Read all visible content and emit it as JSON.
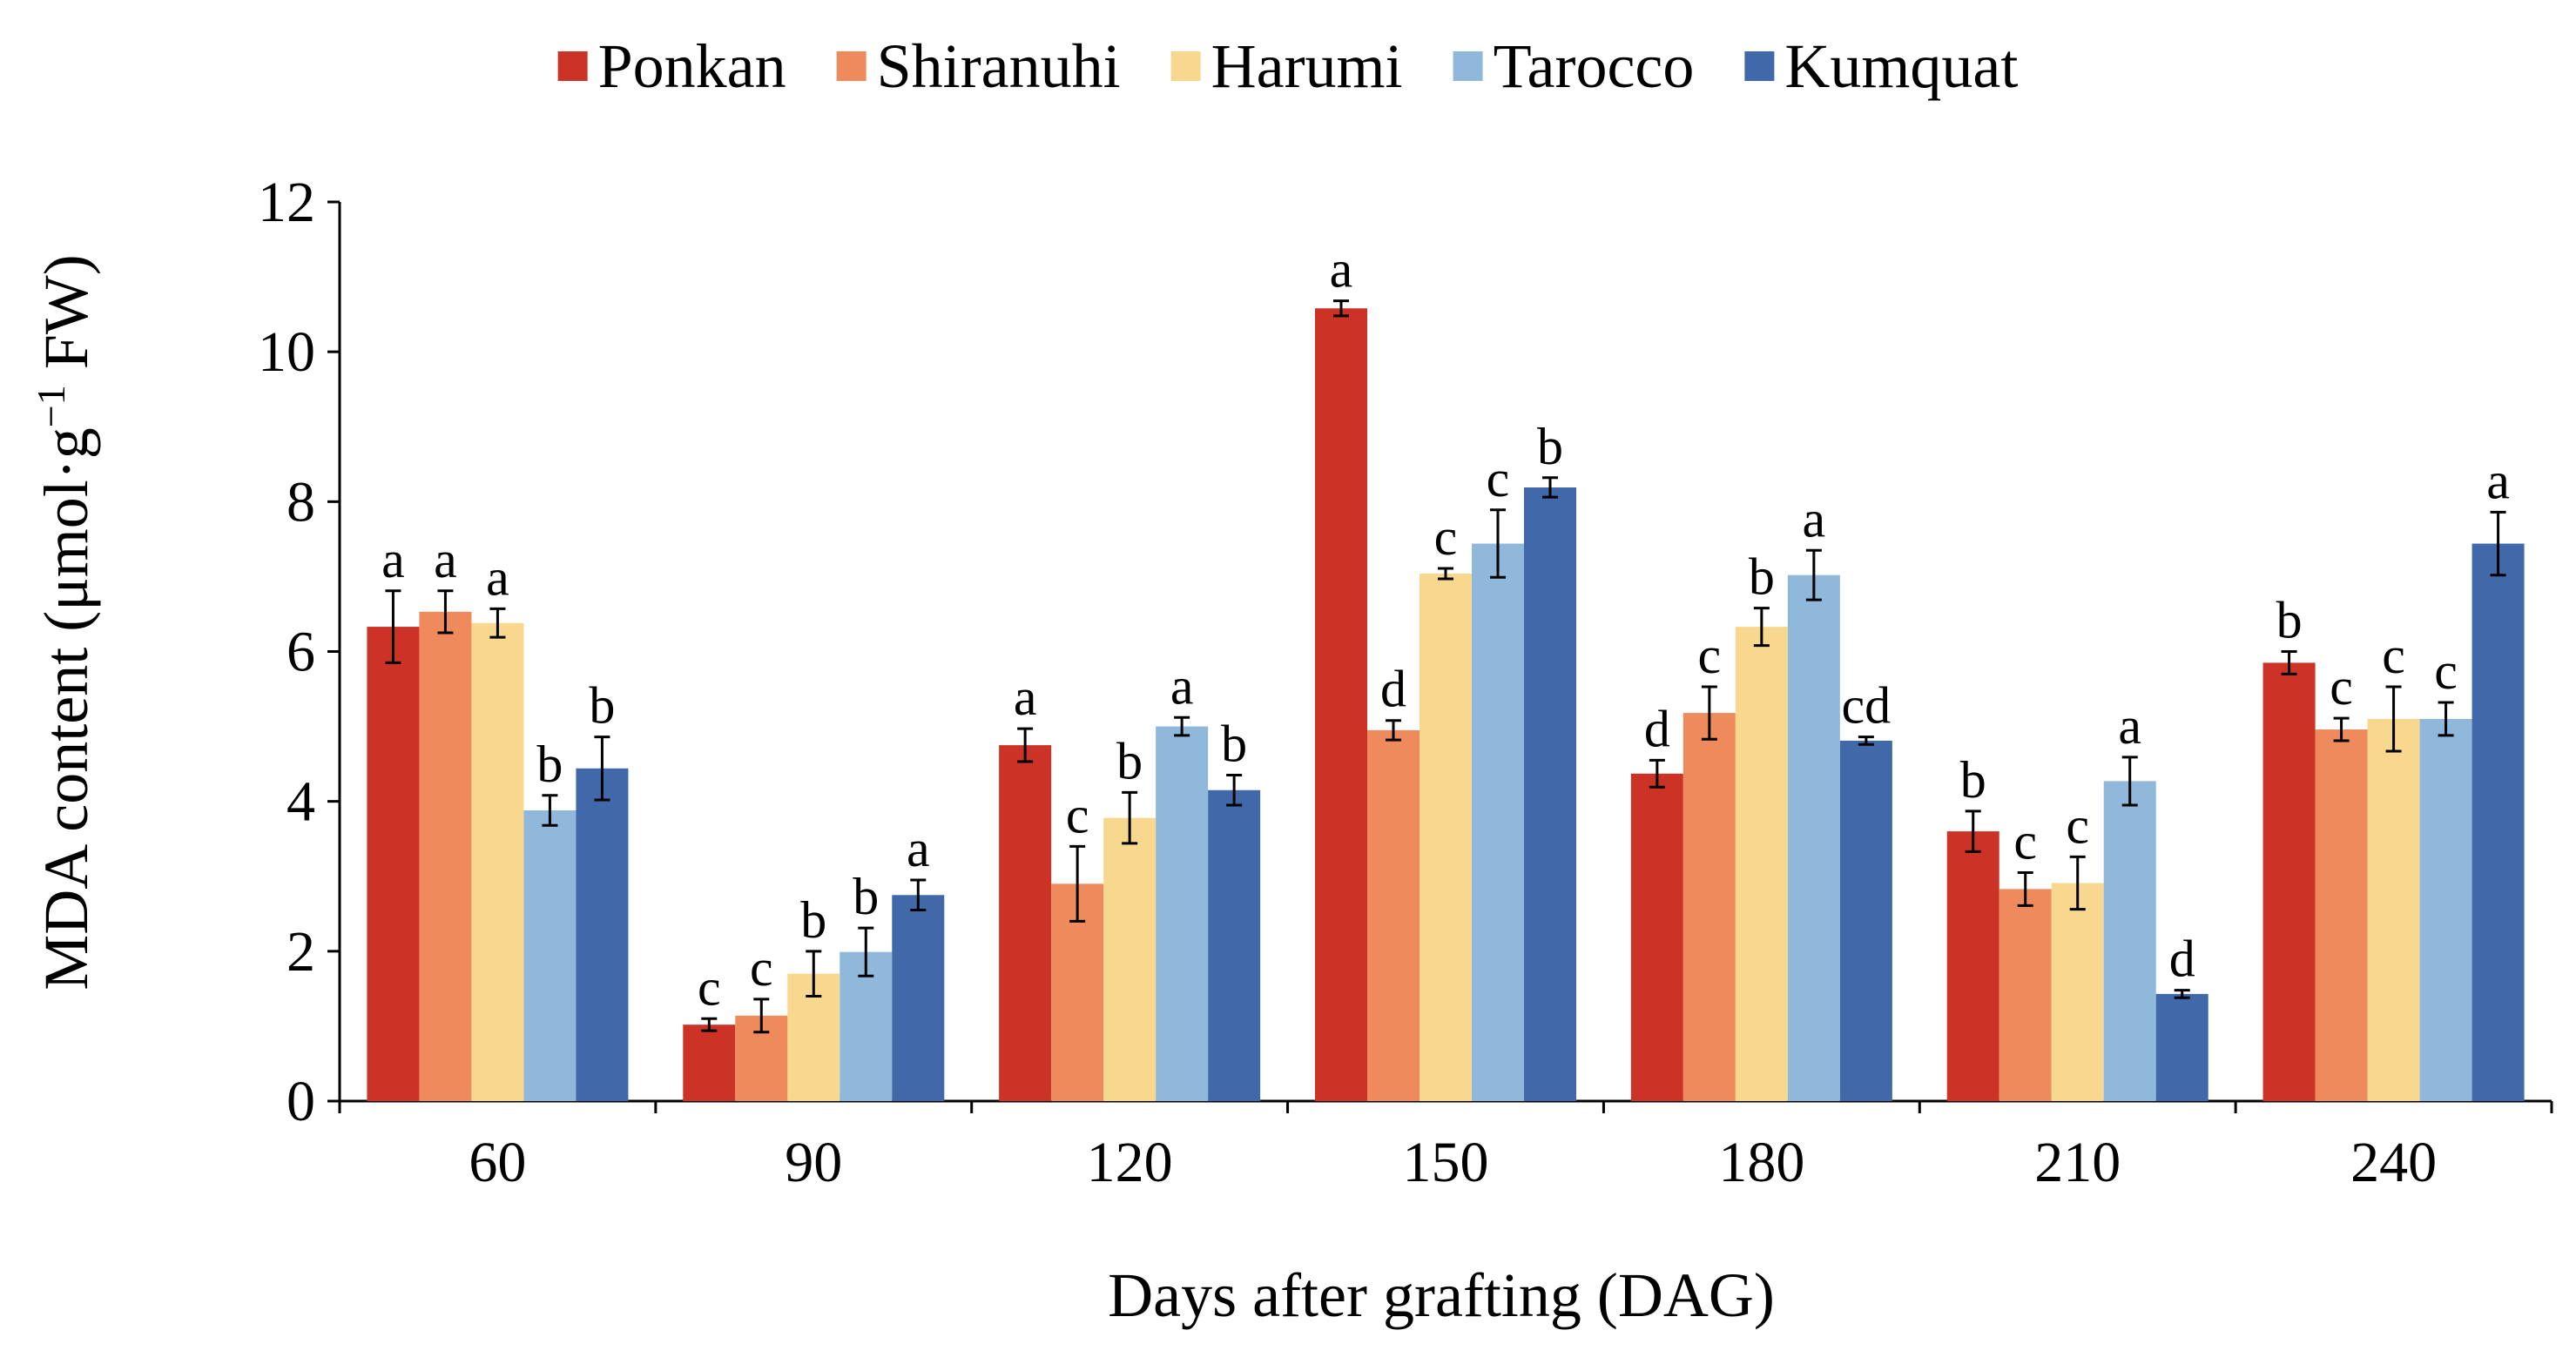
{
  "chart_data": {
    "type": "bar",
    "xlabel": "Days after grafting  (DAG)",
    "ylabel": {
      "main": "MDA content  (μmol·g",
      "sup": "−1",
      "tail": " FW)"
    },
    "ylim": [
      0,
      12
    ],
    "yticks": [
      0,
      2,
      4,
      6,
      8,
      10,
      12
    ],
    "categories": [
      "60",
      "90",
      "120",
      "150",
      "180",
      "210",
      "240"
    ],
    "legend_position": "top",
    "grid": false,
    "series": [
      {
        "name": "Ponkan",
        "color": "#cc3326",
        "values": [
          6.33,
          1.02,
          4.75,
          10.58,
          4.37,
          3.6,
          5.85
        ],
        "errors": [
          0.48,
          0.08,
          0.22,
          0.1,
          0.18,
          0.27,
          0.15
        ],
        "sig": [
          "a",
          "c",
          "a",
          "a",
          "d",
          "b",
          "b"
        ]
      },
      {
        "name": "Shiranuhi",
        "color": "#ee8a5c",
        "values": [
          6.53,
          1.14,
          2.9,
          4.95,
          5.18,
          2.83,
          4.96
        ],
        "errors": [
          0.28,
          0.22,
          0.5,
          0.13,
          0.35,
          0.22,
          0.15
        ],
        "sig": [
          "a",
          "c",
          "c",
          "d",
          "c",
          "c",
          "c"
        ]
      },
      {
        "name": "Harumi",
        "color": "#f8d88e",
        "values": [
          6.38,
          1.7,
          3.78,
          7.04,
          6.33,
          2.91,
          5.1
        ],
        "errors": [
          0.19,
          0.3,
          0.34,
          0.07,
          0.25,
          0.35,
          0.43
        ],
        "sig": [
          "a",
          "b",
          "b",
          "c",
          "b",
          "c",
          "c"
        ]
      },
      {
        "name": "Tarocco",
        "color": "#8fb8db",
        "values": [
          3.88,
          1.99,
          5.0,
          7.44,
          7.02,
          4.27,
          5.1
        ],
        "errors": [
          0.2,
          0.32,
          0.12,
          0.45,
          0.33,
          0.32,
          0.22
        ],
        "sig": [
          "b",
          "b",
          "a",
          "c",
          "a",
          "a",
          "c"
        ]
      },
      {
        "name": "Kumquat",
        "color": "#4169aa",
        "values": [
          4.44,
          2.75,
          4.15,
          8.19,
          4.81,
          1.43,
          7.44
        ],
        "errors": [
          0.42,
          0.2,
          0.2,
          0.13,
          0.05,
          0.05,
          0.42
        ],
        "sig": [
          "b",
          "a",
          "b",
          "b",
          "cd",
          "d",
          "a"
        ]
      }
    ]
  }
}
